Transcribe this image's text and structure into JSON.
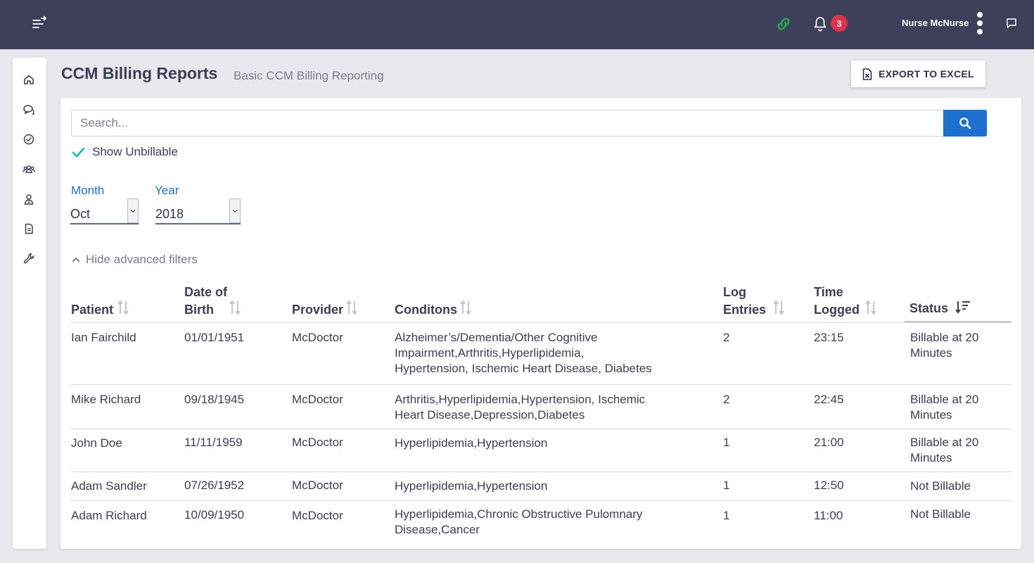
{
  "header": {
    "user_name": "Nurse McNurse",
    "notification_count": "3",
    "colors": {
      "bar": "#3e4059",
      "link_icon": "#28a65a",
      "badge": "#e0334a"
    }
  },
  "sidebar": {
    "items": [
      {
        "name": "home-icon"
      },
      {
        "name": "messages-icon"
      },
      {
        "name": "tasks-icon"
      },
      {
        "name": "patients-icon"
      },
      {
        "name": "providers-icon"
      },
      {
        "name": "reports-icon"
      },
      {
        "name": "settings-icon"
      }
    ]
  },
  "page": {
    "title": "CCM Billing Reports",
    "subtitle": "Basic CCM Billing Reporting",
    "export_label": "EXPORT TO EXCEL"
  },
  "filters": {
    "search_placeholder": "Search...",
    "show_unbillable_label": "Show Unbillable",
    "show_unbillable_checked": true,
    "month_label": "Month",
    "month_value": "Oct",
    "year_label": "Year",
    "year_value": "2018",
    "advanced_toggle_label": "Hide advanced filters"
  },
  "table": {
    "columns": {
      "patient": "Patient",
      "dob_line1": "Date of",
      "dob_line2": "Birth",
      "provider": "Provider",
      "conditions": "Conditons",
      "log_line1": "Log",
      "log_line2": "Entries",
      "time_line1": "Time",
      "time_line2": "Logged",
      "status": "Status"
    },
    "rows": [
      {
        "patient": "Ian Fairchild",
        "dob": "01/01/1951",
        "provider": "McDoctor",
        "conditions": [
          "Alzheimer’s/Dementia/Other Cognitive",
          "Impairment,Arthritis,Hyperlipidemia,",
          "Hypertension, Ischemic Heart Disease, Diabetes"
        ],
        "log_entries": "2",
        "time_logged": "23:15",
        "status": [
          "Billable at 20",
          "Minutes"
        ]
      },
      {
        "patient": "Mike Richard",
        "dob": "09/18/1945",
        "provider": "McDoctor",
        "conditions": [
          "Arthritis,Hyperlipidemia,Hypertension, Ischemic",
          "Heart Disease,Depression,Diabetes"
        ],
        "log_entries": "2",
        "time_logged": "22:45",
        "status": [
          "Billable at 20",
          "Minutes"
        ]
      },
      {
        "patient": "John Doe",
        "dob": "11/11/1959",
        "provider": "McDoctor",
        "conditions": [
          "Hyperlipidemia,Hypertension"
        ],
        "log_entries": "1",
        "time_logged": "21:00",
        "status": [
          "Billable at 20",
          "Minutes"
        ]
      },
      {
        "patient": "Adam Sandler",
        "dob": "07/26/1952",
        "provider": "McDoctor",
        "conditions": [
          "Hyperlipidemia,Hypertension"
        ],
        "log_entries": "1",
        "time_logged": "12:50",
        "status": [
          "Not Billable"
        ]
      },
      {
        "patient": "Adam Richard",
        "dob": "10/09/1950",
        "provider": "McDoctor",
        "conditions": [
          "Hyperlipidemia,Chronic Obstructive Pulomnary",
          "Disease,Cancer"
        ],
        "log_entries": "1",
        "time_logged": "11:00",
        "status": [
          "Not Billable"
        ]
      }
    ]
  }
}
